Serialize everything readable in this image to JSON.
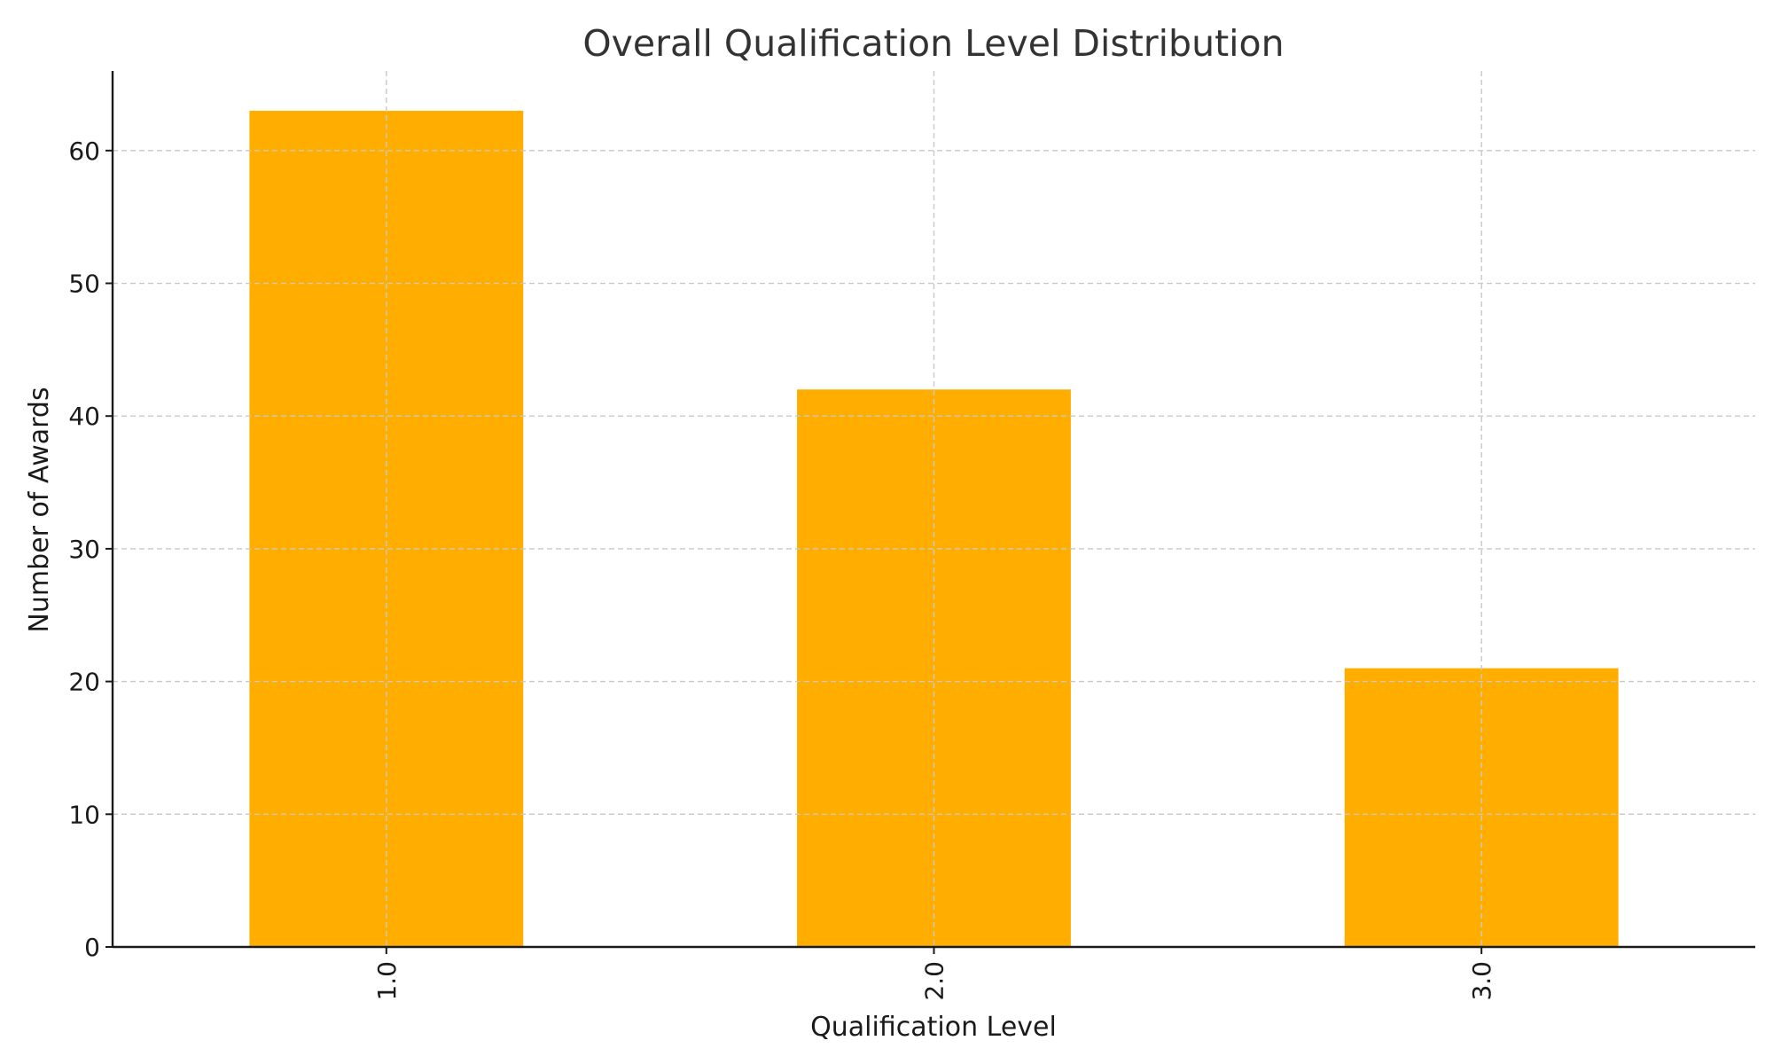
{
  "chart_data": {
    "type": "bar",
    "title": "Overall Qualification Level Distribution",
    "xlabel": "Qualification Level",
    "ylabel": "Number of Awards",
    "categories": [
      "1.0",
      "2.0",
      "3.0"
    ],
    "values": [
      63,
      42,
      21
    ],
    "ylim": [
      0,
      66
    ],
    "yticks": [
      "0",
      "10",
      "20",
      "30",
      "40",
      "50",
      "60"
    ],
    "bar_color": "#FFAE00",
    "grid": true,
    "x_tick_rotation": "vertical"
  }
}
